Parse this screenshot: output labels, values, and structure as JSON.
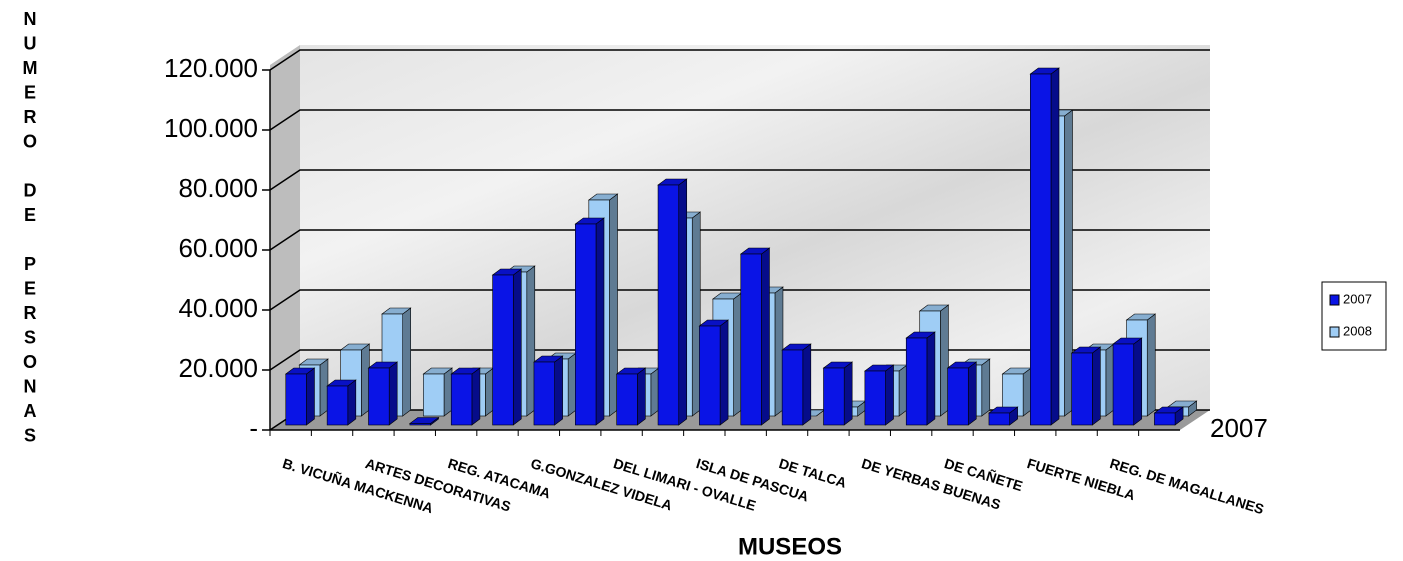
{
  "chart_data": {
    "type": "bar3d",
    "y_axis_label": "NUMERO DE PERSONAS",
    "x_axis_label": "MUSEOS",
    "categories": [
      "B. VICUÑA MACKENNA",
      null,
      "ARTES DECORATIVAS",
      null,
      "REG. ATACAMA",
      null,
      "G.GONZALEZ VIDELA",
      null,
      "DEL LIMARI - OVALLE",
      null,
      "ISLA DE PASCUA",
      null,
      "DE TALCA",
      null,
      "DE YERBAS BUENAS",
      null,
      "DE CAÑETE",
      null,
      "FUERTE NIEBLA",
      null,
      "REG. DE MAGALLANES",
      null
    ],
    "series": [
      {
        "name": "2007",
        "color": "#0a14e6",
        "values": [
          17000,
          13000,
          19000,
          500,
          17000,
          50000,
          21000,
          67000,
          17000,
          80000,
          33000,
          57000,
          25000,
          19000,
          18000,
          29000,
          19000,
          4000,
          117000,
          24000,
          27000,
          4000
        ]
      },
      {
        "name": "2008",
        "color": "#9fcdf5",
        "values": [
          17000,
          22000,
          34000,
          14000,
          14000,
          48000,
          19000,
          72000,
          14000,
          66000,
          39000,
          41000,
          0,
          3000,
          15000,
          35000,
          17000,
          14000,
          100000,
          22000,
          32000,
          3000
        ]
      }
    ],
    "ylim": [
      0,
      120000
    ],
    "yticks": [
      {
        "value": 0,
        "label": "-"
      },
      {
        "value": 20000,
        "label": "20.000"
      },
      {
        "value": 40000,
        "label": "40.000"
      },
      {
        "value": 60000,
        "label": "60.000"
      },
      {
        "value": 80000,
        "label": "80.000"
      },
      {
        "value": 100000,
        "label": "100.000"
      },
      {
        "value": 120000,
        "label": "120.000"
      }
    ],
    "grid": true,
    "legend": "right"
  }
}
